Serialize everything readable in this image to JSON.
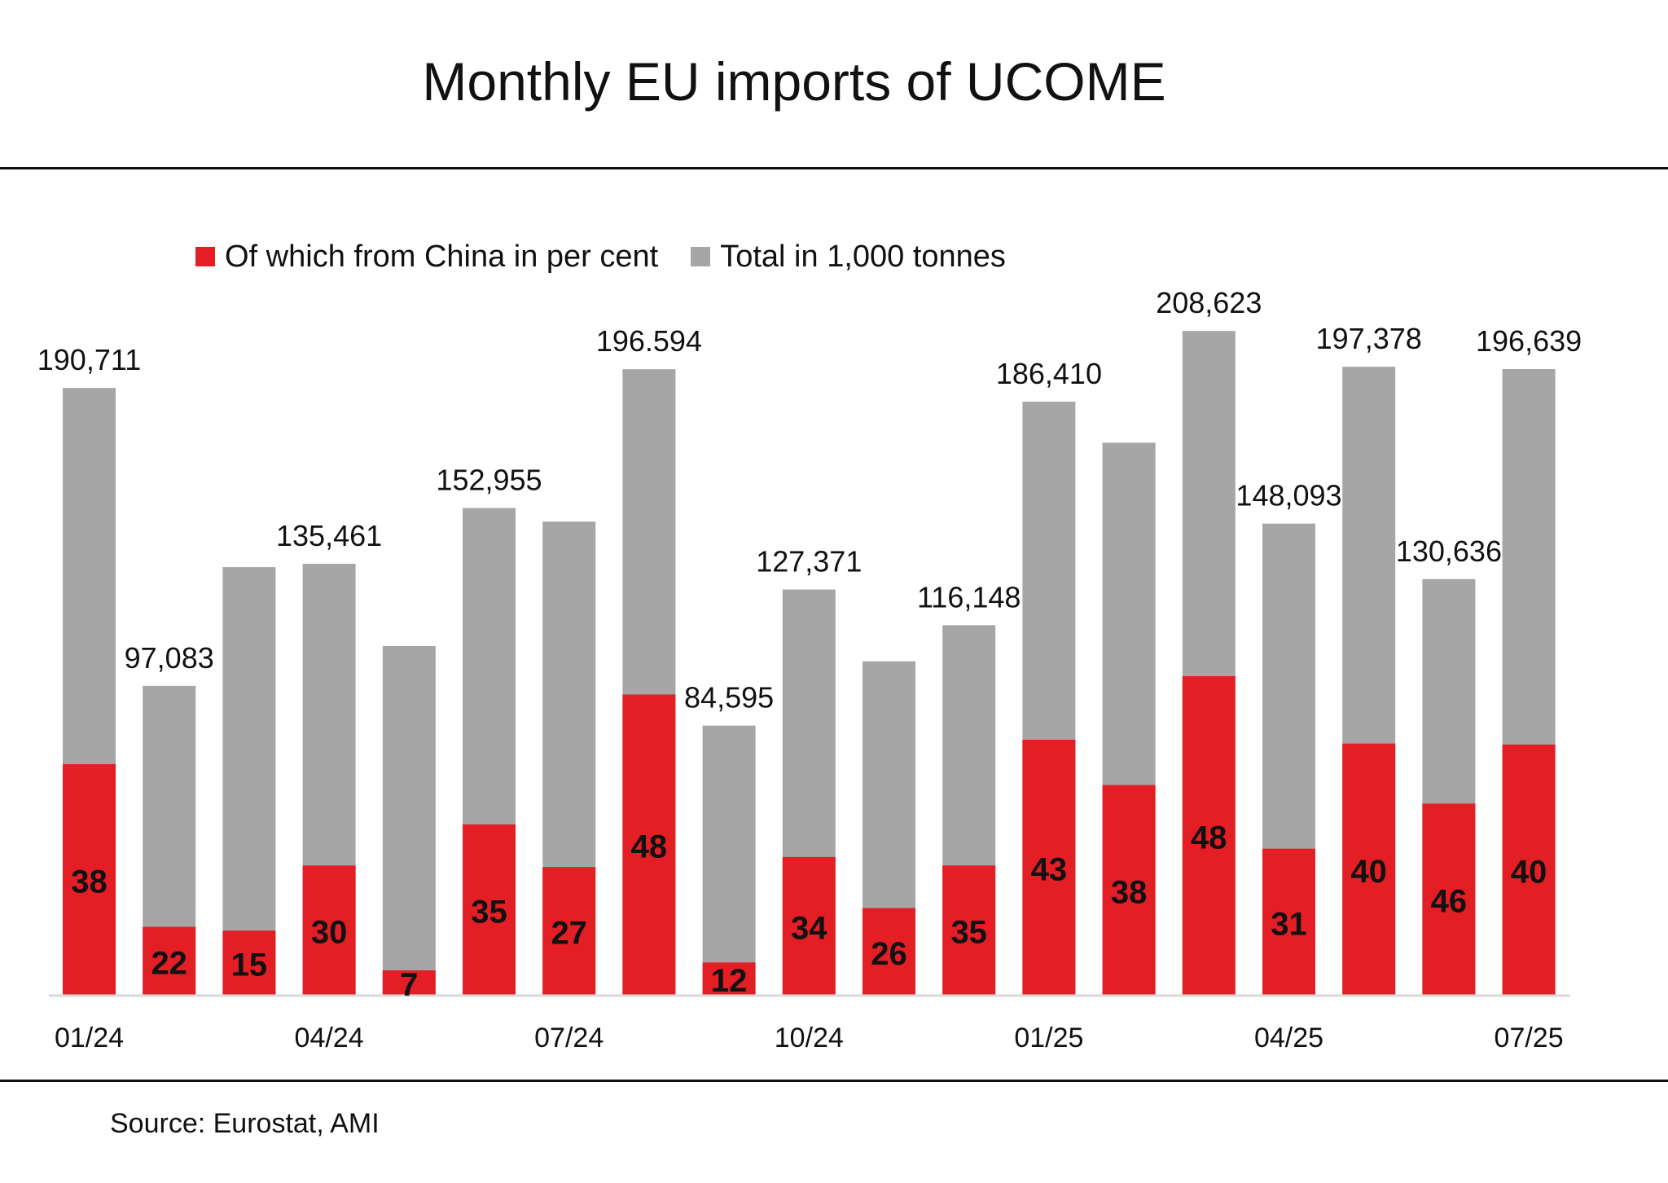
{
  "chart_data": {
    "type": "bar",
    "title": "Monthly EU imports of UCOME",
    "categories": [
      "01/24",
      "02/24",
      "03/24",
      "04/24",
      "05/24",
      "06/24",
      "07/24",
      "08/24",
      "09/24",
      "10/24",
      "11/24",
      "12/24",
      "01/25",
      "02/25",
      "03/25",
      "04/25",
      "05/25",
      "06/25",
      "07/25"
    ],
    "x_tick_labels": [
      {
        "index": 0,
        "label": "01/24"
      },
      {
        "index": 3,
        "label": "04/24"
      },
      {
        "index": 6,
        "label": "07/24"
      },
      {
        "index": 9,
        "label": "10/24"
      },
      {
        "index": 12,
        "label": "01/25"
      },
      {
        "index": 15,
        "label": "04/25"
      },
      {
        "index": 18,
        "label": "07/25"
      }
    ],
    "series": [
      {
        "name": "Total in 1,000 tonnes",
        "color": "#a6a6a6",
        "values": [
          190.711,
          97.083,
          134.4,
          135.461,
          109.6,
          152.955,
          148.7,
          196.594,
          84.595,
          127.371,
          104.8,
          116.148,
          186.41,
          173.5,
          208.623,
          148.093,
          197.378,
          130.636,
          196.639
        ],
        "labels": [
          "190,711",
          "97,083",
          "",
          "135,461",
          "",
          "152,955",
          "",
          "196.594",
          "84,595",
          "127,371",
          "",
          "116,148",
          "186,410",
          "",
          "208,623",
          "148,093",
          "197,378",
          "130,636",
          "196,639"
        ]
      },
      {
        "name": "Of which from China in per cent",
        "color": "#e31e24",
        "values": [
          38,
          22,
          15,
          30,
          7,
          35,
          27,
          48,
          12,
          34,
          26,
          35,
          43,
          38,
          48,
          31,
          40,
          46,
          40
        ],
        "labels": [
          "38",
          "22",
          "15",
          "30",
          "7",
          "35",
          "27",
          "48",
          "12",
          "34",
          "26",
          "35",
          "43",
          "38",
          "48",
          "31",
          "40",
          "46",
          "40"
        ]
      }
    ],
    "ylim": [
      0,
      215
    ],
    "grid": false,
    "legend_position": "top",
    "source": "Source: Eurostat, AMI"
  }
}
